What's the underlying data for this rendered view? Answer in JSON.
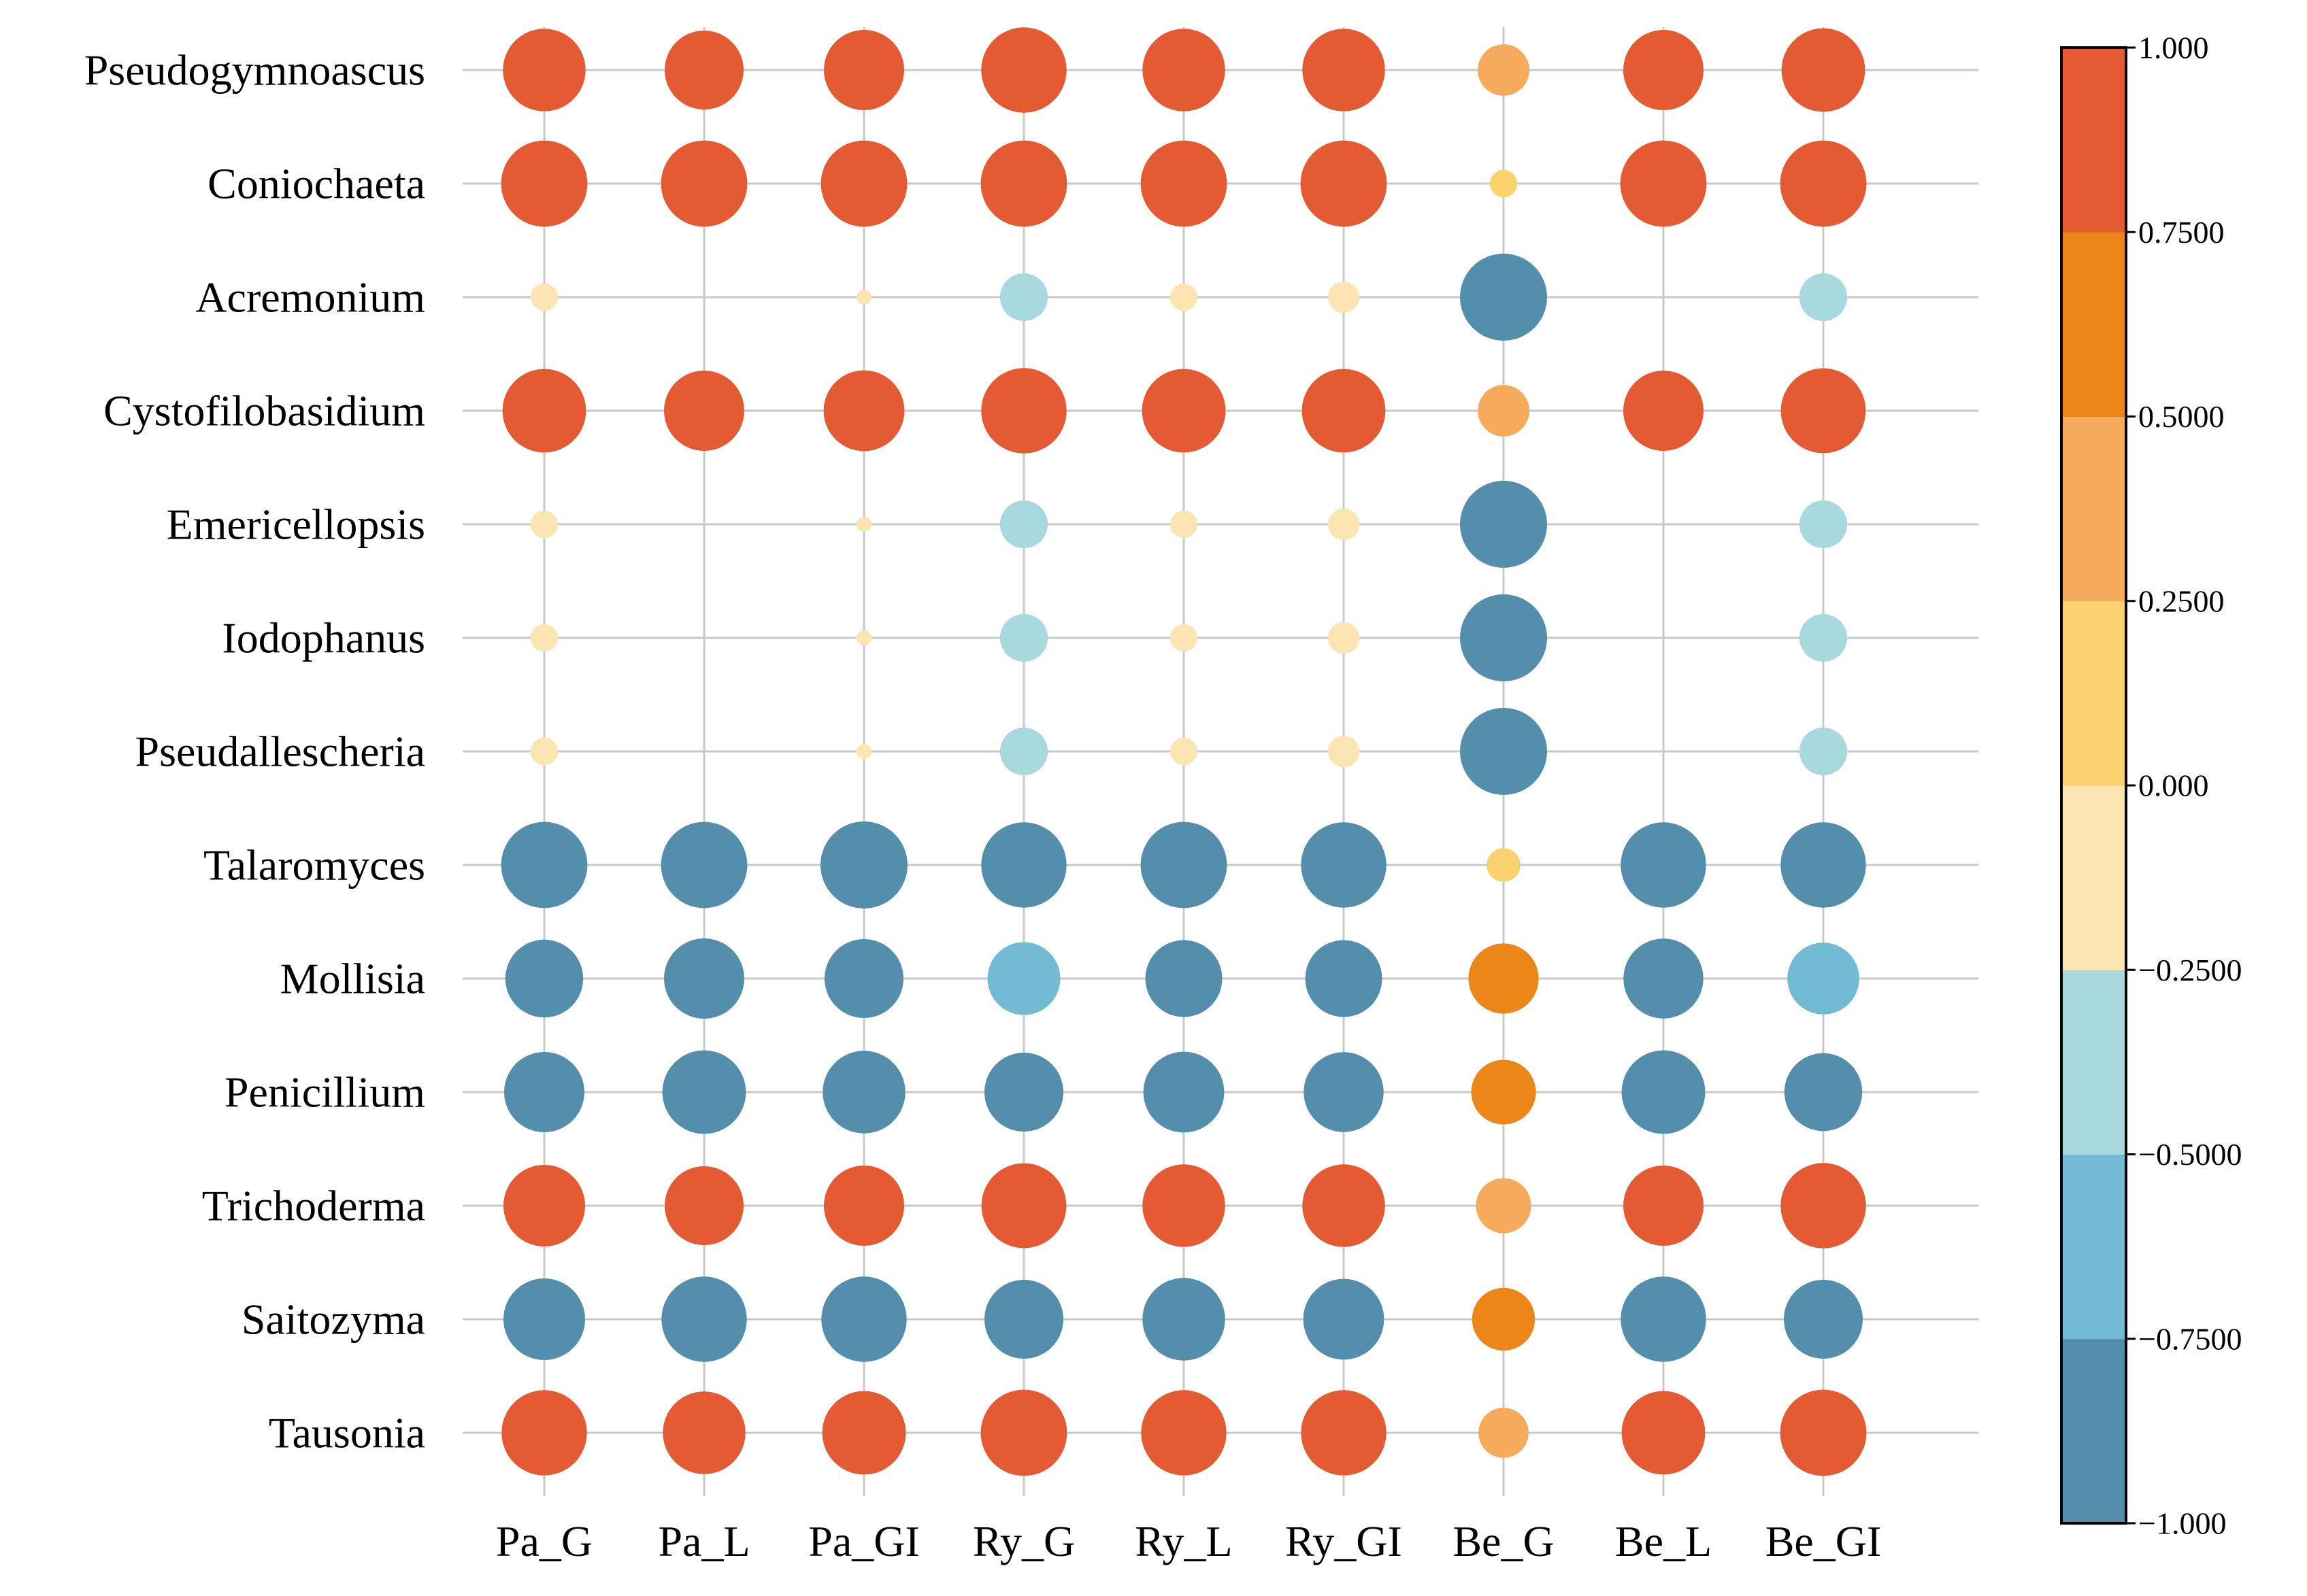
{
  "chart_data": {
    "type": "bubble-correlation-heatmap",
    "rows": [
      "Pseudogymnoascus",
      "Coniochaeta",
      "Acremonium",
      "Cystofilobasidium",
      "Emericellopsis",
      "Iodophanus",
      "Pseudallescheria",
      "Talaromyces",
      "Mollisia",
      "Penicillium",
      "Trichoderma",
      "Saitozyma",
      "Tausonia"
    ],
    "columns": [
      "Pa_G",
      "Pa_L",
      "Pa_GI",
      "Ry_G",
      "Ry_L",
      "Ry_GI",
      "Be_G",
      "Be_L",
      "Be_GI"
    ],
    "values": [
      [
        0.9,
        0.82,
        0.85,
        0.96,
        0.9,
        0.9,
        0.35,
        0.85,
        0.92
      ],
      [
        0.98,
        0.98,
        0.98,
        0.98,
        0.98,
        0.98,
        0.1,
        0.98,
        0.98
      ],
      [
        -0.1,
        0.0,
        -0.03,
        -0.3,
        -0.1,
        -0.13,
        -1.0,
        0.0,
        -0.3
      ],
      [
        0.92,
        0.85,
        0.86,
        0.96,
        0.92,
        0.92,
        0.35,
        0.85,
        0.95
      ],
      [
        -0.1,
        0.0,
        -0.03,
        -0.3,
        -0.1,
        -0.13,
        -1.0,
        0.0,
        -0.3
      ],
      [
        -0.1,
        0.0,
        -0.03,
        -0.3,
        -0.1,
        -0.13,
        -1.0,
        0.0,
        -0.3
      ],
      [
        -0.1,
        0.0,
        -0.03,
        -0.3,
        -0.1,
        -0.13,
        -1.0,
        0.0,
        -0.3
      ],
      [
        -0.98,
        -0.98,
        -1.0,
        -0.96,
        -0.98,
        -0.96,
        0.15,
        -0.96,
        -0.96
      ],
      [
        -0.8,
        -0.85,
        -0.82,
        -0.7,
        -0.78,
        -0.78,
        0.65,
        -0.84,
        -0.68
      ],
      [
        -0.85,
        -0.92,
        -0.9,
        -0.82,
        -0.86,
        -0.84,
        0.55,
        -0.92,
        -0.8
      ],
      [
        0.88,
        0.82,
        0.85,
        0.95,
        0.9,
        0.9,
        0.4,
        0.85,
        0.96
      ],
      [
        -0.88,
        -0.96,
        -0.96,
        -0.82,
        -0.9,
        -0.86,
        0.52,
        -0.96,
        -0.82
      ],
      [
        0.96,
        0.9,
        0.92,
        0.98,
        0.96,
        0.96,
        0.33,
        0.92,
        0.98
      ]
    ],
    "color_scale": {
      "range": [
        -1,
        1
      ],
      "bins": [
        {
          "min": -1.0,
          "max": -0.75,
          "color": "#538fad"
        },
        {
          "min": -0.75,
          "max": -0.5,
          "color": "#73bad5"
        },
        {
          "min": -0.5,
          "max": -0.25,
          "color": "#a8d9de"
        },
        {
          "min": -0.25,
          "max": 0.0,
          "color": "#fde5b3"
        },
        {
          "min": 0.0,
          "max": 0.25,
          "color": "#fbd26f"
        },
        {
          "min": 0.25,
          "max": 0.5,
          "color": "#f5aa5c"
        },
        {
          "min": 0.5,
          "max": 0.75,
          "color": "#ec8619"
        },
        {
          "min": 0.75,
          "max": 1.0,
          "color": "#e35a33"
        }
      ]
    },
    "colorbar_ticks": [
      "1.000",
      "0.7500",
      "0.5000",
      "0.2500",
      "0.000",
      "−0.2500",
      "−0.5000",
      "−0.7500",
      "−1.000"
    ],
    "grid": true,
    "legend": "colorbar-right"
  },
  "colors": {
    "grid": "#c8c8c8",
    "text": "#000000",
    "background": "#ffffff"
  }
}
